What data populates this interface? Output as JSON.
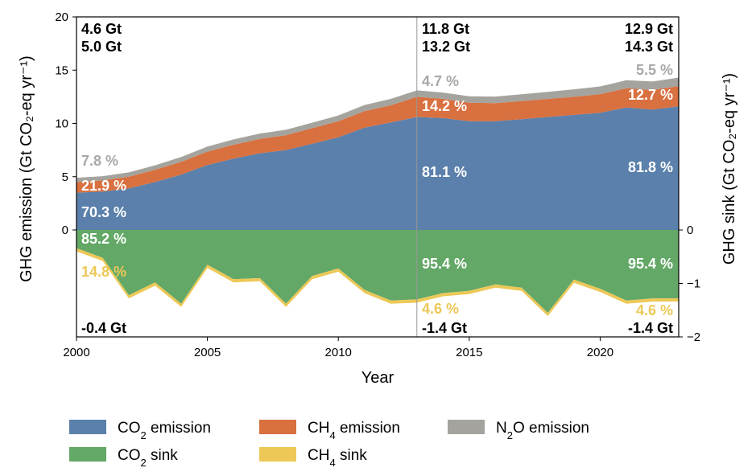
{
  "chart_data": {
    "type": "area",
    "xlabel": "Year",
    "ylabel_left": "GHG emission (Gt CO₂-eq yr⁻¹)",
    "ylabel_right": "GHG sink (Gt CO₂-eq yr⁻¹)",
    "xlim": [
      2000,
      2023
    ],
    "ylim_left": [
      0,
      20
    ],
    "ylim_right": [
      -2,
      0
    ],
    "x_ticks": [
      2000,
      2005,
      2010,
      2015,
      2020
    ],
    "y_ticks_left": [
      0,
      5,
      10,
      15,
      20
    ],
    "y_ticks_right": [
      0,
      -1,
      -2
    ],
    "divider_year": 2013,
    "colors": {
      "co2_emission": "#5b80ab",
      "ch4_emission": "#d9703f",
      "n2o_emission": "#a5a39d",
      "co2_sink": "#63a867",
      "ch4_sink": "#edc857",
      "annotation_grey": "#a8a8a8",
      "annotation_gold": "#edc857"
    },
    "x": [
      2000,
      2001,
      2002,
      2003,
      2004,
      2005,
      2006,
      2007,
      2008,
      2009,
      2010,
      2011,
      2012,
      2013,
      2014,
      2015,
      2016,
      2017,
      2018,
      2019,
      2020,
      2021,
      2022,
      2023
    ],
    "emission_series": [
      {
        "key": "co2_emission",
        "name": "CO₂ emission",
        "values": [
          3.5,
          3.6,
          3.9,
          4.5,
          5.2,
          6.1,
          6.7,
          7.2,
          7.5,
          8.1,
          8.7,
          9.6,
          10.1,
          10.6,
          10.5,
          10.2,
          10.2,
          10.4,
          10.6,
          10.8,
          11.0,
          11.5,
          11.3,
          11.6
        ]
      },
      {
        "key": "ch4_emission",
        "name": "CH₄ emission",
        "values": [
          1.0,
          1.05,
          1.1,
          1.15,
          1.2,
          1.25,
          1.3,
          1.35,
          1.4,
          1.45,
          1.5,
          1.55,
          1.6,
          1.9,
          1.8,
          1.75,
          1.7,
          1.7,
          1.7,
          1.7,
          1.75,
          1.8,
          1.85,
          1.9
        ]
      },
      {
        "key": "n2o_emission",
        "name": "N₂O emission",
        "values": [
          0.4,
          0.4,
          0.4,
          0.42,
          0.45,
          0.48,
          0.5,
          0.5,
          0.5,
          0.52,
          0.55,
          0.58,
          0.6,
          0.6,
          0.6,
          0.6,
          0.62,
          0.64,
          0.66,
          0.7,
          0.72,
          0.75,
          0.78,
          0.8
        ]
      }
    ],
    "sink_series": [
      {
        "key": "co2_sink",
        "name": "CO₂ sink",
        "values": [
          -0.34,
          -0.52,
          -1.22,
          -0.98,
          -1.38,
          -0.65,
          -0.92,
          -0.9,
          -1.38,
          -0.86,
          -0.72,
          -1.12,
          -1.32,
          -1.3,
          -1.18,
          -1.14,
          -1.02,
          -1.08,
          -1.55,
          -0.93,
          -1.1,
          -1.32,
          -1.28,
          -1.28
        ]
      },
      {
        "key": "ch4_sink",
        "name": "CH₄ sink",
        "values": [
          -0.06,
          -0.06,
          -0.06,
          -0.06,
          -0.06,
          -0.06,
          -0.06,
          -0.06,
          -0.06,
          -0.06,
          -0.06,
          -0.06,
          -0.06,
          -0.06,
          -0.06,
          -0.06,
          -0.06,
          -0.06,
          -0.06,
          -0.06,
          -0.06,
          -0.06,
          -0.06,
          -0.06
        ]
      }
    ],
    "legend": [
      {
        "key": "co2_emission",
        "base": "CO",
        "sub": "2",
        "rest": " emission"
      },
      {
        "key": "ch4_emission",
        "base": "CH",
        "sub": "4",
        "rest": " emission"
      },
      {
        "key": "n2o_emission",
        "base": "N",
        "sub": "2",
        "rest": "O emission"
      },
      {
        "key": "co2_sink",
        "base": "CO",
        "sub": "2",
        "rest": " sink"
      },
      {
        "key": "ch4_sink",
        "base": "CH",
        "sub": "4",
        "rest": " sink"
      }
    ],
    "annotations": [
      {
        "name": "total-emission-2000",
        "text": "4.6 Gt",
        "color": "#000000"
      },
      {
        "name": "total-emission-2000-b",
        "text": "5.0 Gt",
        "color": "#000000"
      },
      {
        "name": "n2o-pct-2000",
        "text": "7.8 %",
        "color": "#a8a8a8"
      },
      {
        "name": "ch4-pct-2000",
        "text": "21.9 %",
        "color": "#ffffff"
      },
      {
        "name": "co2-pct-2000",
        "text": "70.3 %",
        "color": "#ffffff"
      },
      {
        "name": "co2-sink-pct-2000",
        "text": "85.2 %",
        "color": "#ffffff"
      },
      {
        "name": "ch4-sink-pct-2000",
        "text": "14.8 %",
        "color": "#edc857"
      },
      {
        "name": "total-sink-2000",
        "text": "-0.4 Gt",
        "color": "#000000"
      },
      {
        "name": "total-emission-2013",
        "text": "11.8 Gt",
        "color": "#000000"
      },
      {
        "name": "total-emission-2013-b",
        "text": "13.2 Gt",
        "color": "#000000"
      },
      {
        "name": "n2o-pct-2013",
        "text": "4.7 %",
        "color": "#a8a8a8"
      },
      {
        "name": "ch4-pct-2013",
        "text": "14.2 %",
        "color": "#ffffff"
      },
      {
        "name": "co2-pct-2013",
        "text": "81.1 %",
        "color": "#ffffff"
      },
      {
        "name": "co2-sink-pct-2013",
        "text": "95.4 %",
        "color": "#ffffff"
      },
      {
        "name": "ch4-sink-pct-2013",
        "text": "4.6 %",
        "color": "#edc857"
      },
      {
        "name": "total-sink-2013",
        "text": "-1.4 Gt",
        "color": "#000000"
      },
      {
        "name": "total-emission-2023",
        "text": "12.9 Gt",
        "color": "#000000"
      },
      {
        "name": "total-emission-2023-b",
        "text": "14.3 Gt",
        "color": "#000000"
      },
      {
        "name": "n2o-pct-2023",
        "text": "5.5 %",
        "color": "#a8a8a8"
      },
      {
        "name": "ch4-pct-2023",
        "text": "12.7 %",
        "color": "#ffffff"
      },
      {
        "name": "co2-pct-2023",
        "text": "81.8 %",
        "color": "#ffffff"
      },
      {
        "name": "co2-sink-pct-2023",
        "text": "95.4 %",
        "color": "#ffffff"
      },
      {
        "name": "ch4-sink-pct-2023",
        "text": "4.6 %",
        "color": "#edc857"
      },
      {
        "name": "total-sink-2023",
        "text": "-1.4 Gt",
        "color": "#000000"
      }
    ]
  }
}
